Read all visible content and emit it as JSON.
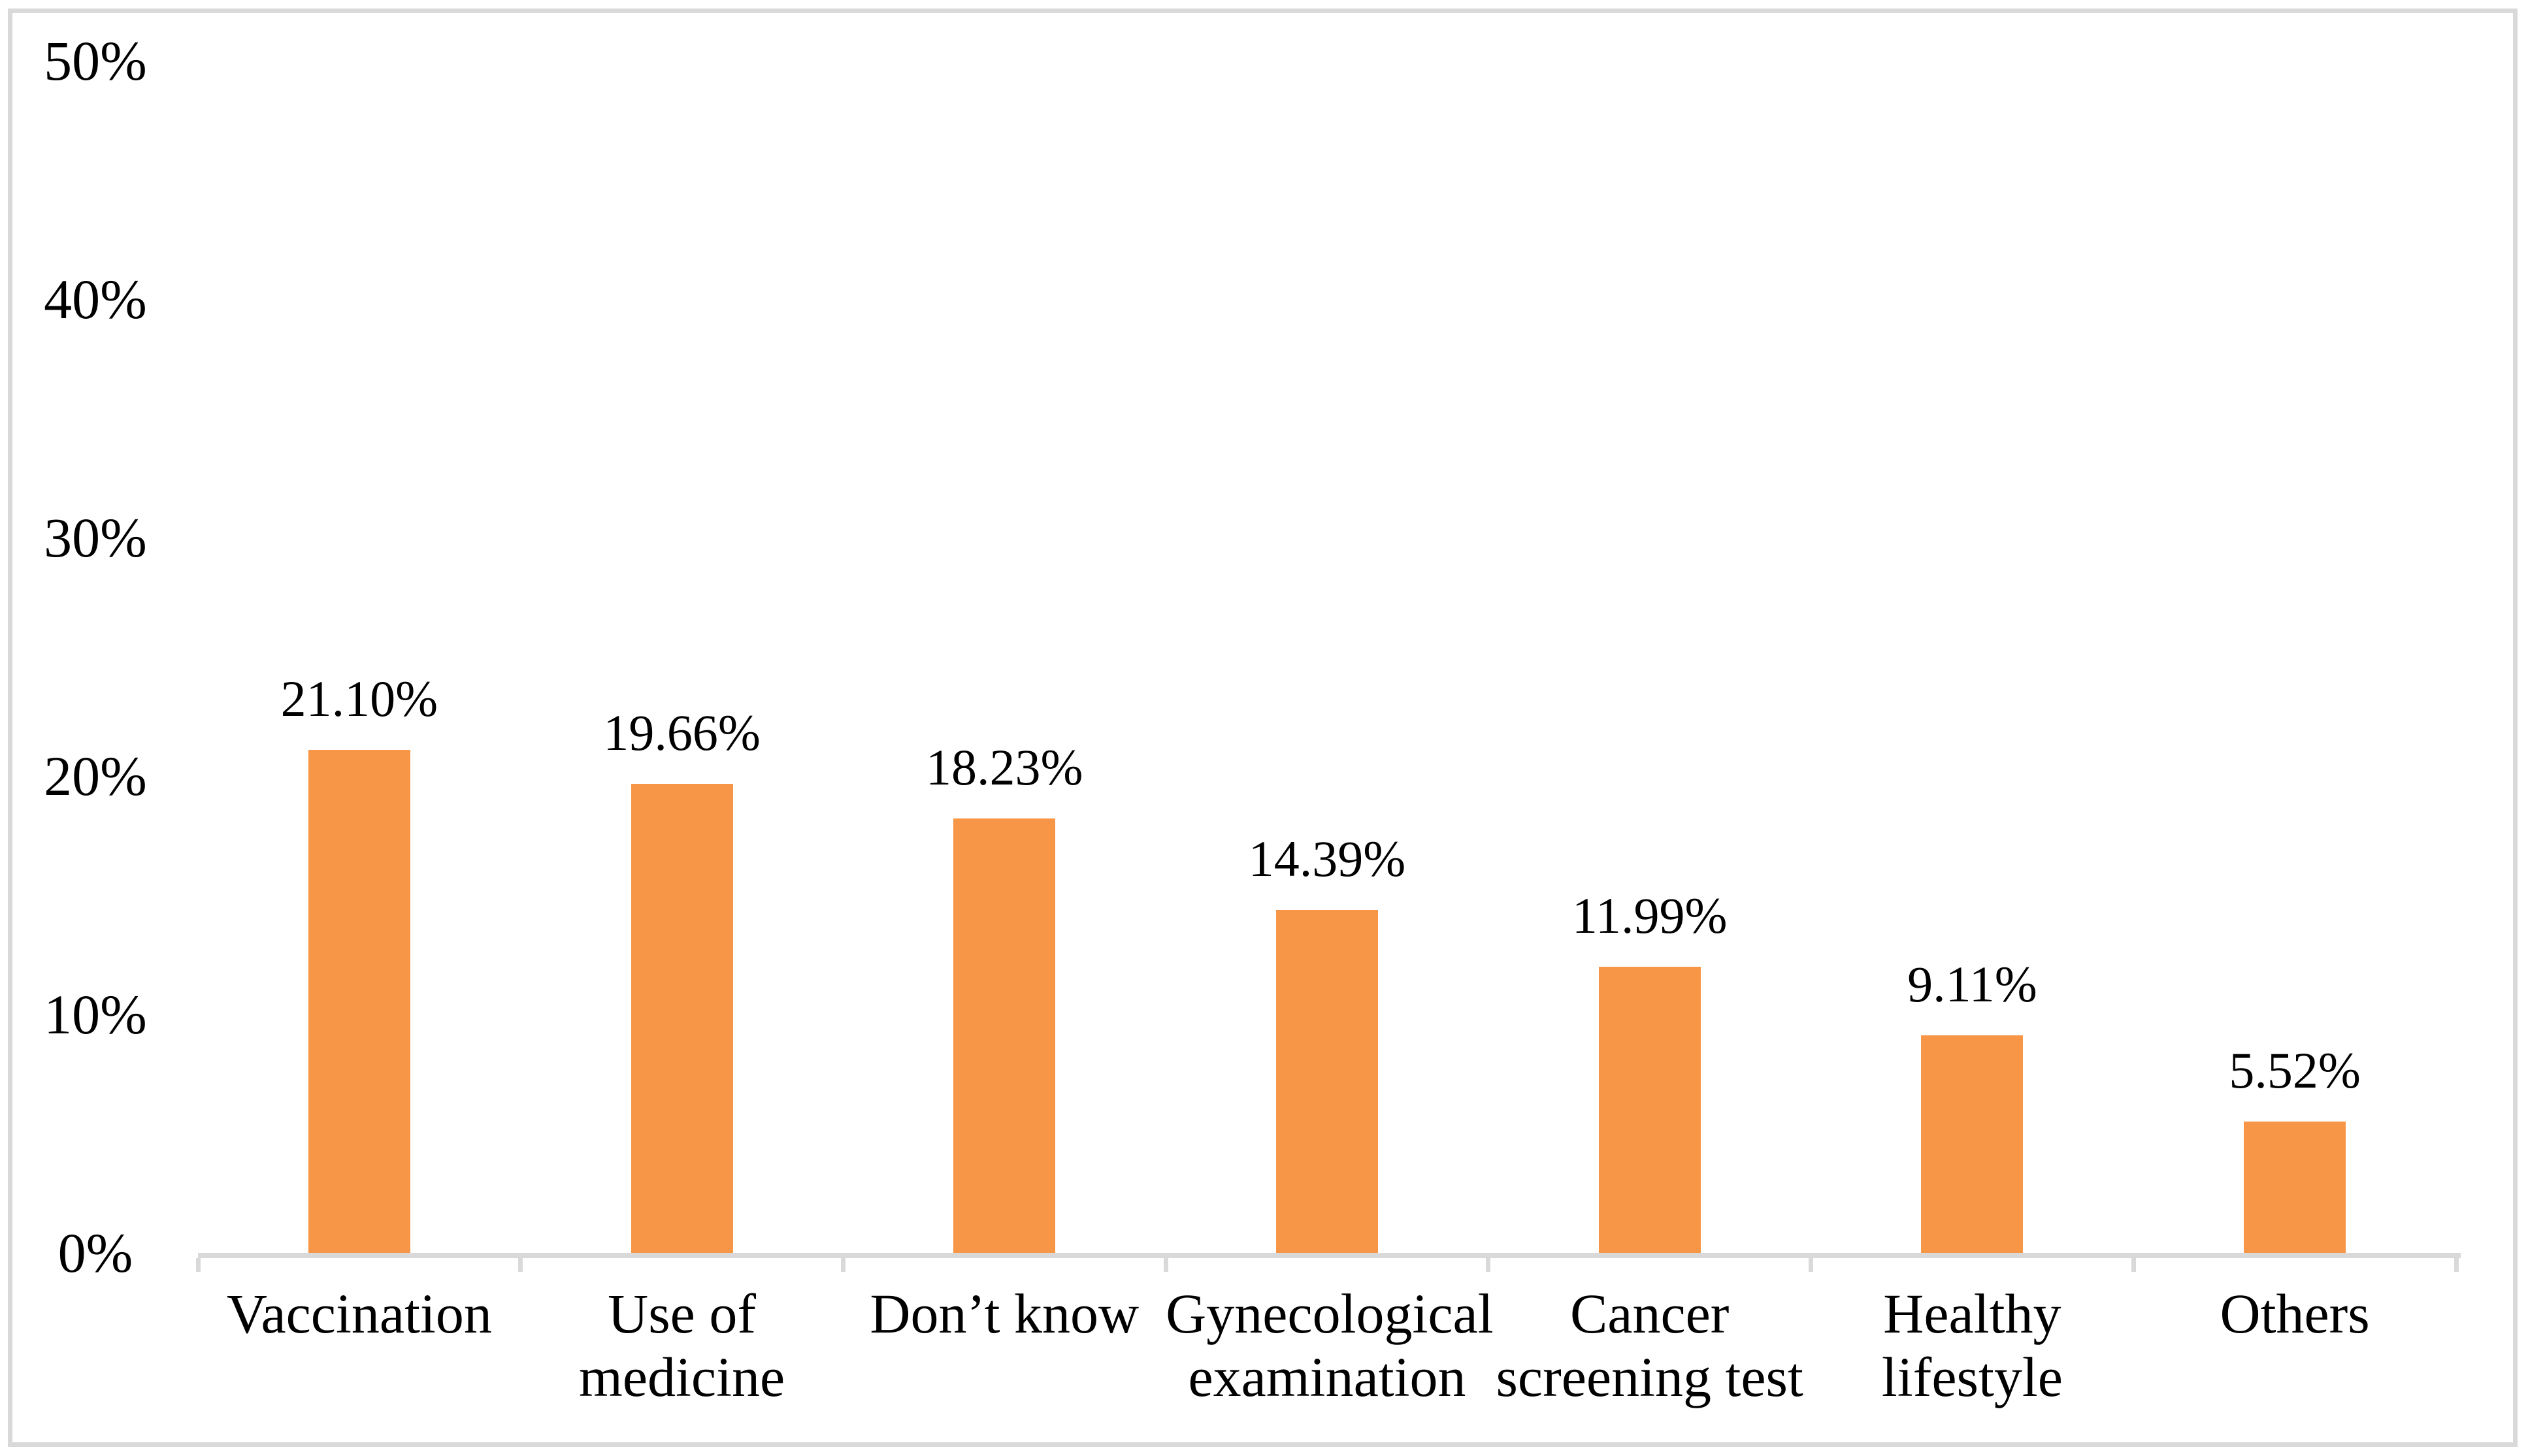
{
  "figure": {
    "background": "#ffffff",
    "border_color": "#d9d9d9"
  },
  "chart_data": {
    "type": "bar",
    "title": "",
    "xlabel": "",
    "ylabel": "",
    "categories": [
      "Vaccination",
      "Use of medicine",
      "Don’t know",
      "Gynecological examination",
      "Cancer screening test",
      "Healthy lifestyle",
      "Others"
    ],
    "category_lines": [
      [
        "Vaccination"
      ],
      [
        "Use of",
        "medicine"
      ],
      [
        "Don’t know"
      ],
      [
        "Gynecological",
        "examination"
      ],
      [
        "Cancer",
        "screening test"
      ],
      [
        "Healthy",
        "lifestyle"
      ],
      [
        "Others"
      ]
    ],
    "values": [
      21.1,
      19.66,
      18.23,
      14.39,
      11.99,
      9.11,
      5.52
    ],
    "data_labels": [
      "21.10%",
      "19.66%",
      "18.23%",
      "14.39%",
      "11.99%",
      "9.11%",
      "5.52%"
    ],
    "ylim": [
      0,
      50
    ],
    "y_ticks": [
      {
        "value": 0,
        "label": "0%"
      },
      {
        "value": 10,
        "label": "10%"
      },
      {
        "value": 20,
        "label": "20%"
      },
      {
        "value": 30,
        "label": "30%"
      },
      {
        "value": 40,
        "label": "40%"
      },
      {
        "value": 50,
        "label": "50%"
      }
    ],
    "bar_color": "#F79646",
    "axis_color": "#D9D9D9",
    "text_color": "#000000",
    "grid": false,
    "legend": false
  }
}
